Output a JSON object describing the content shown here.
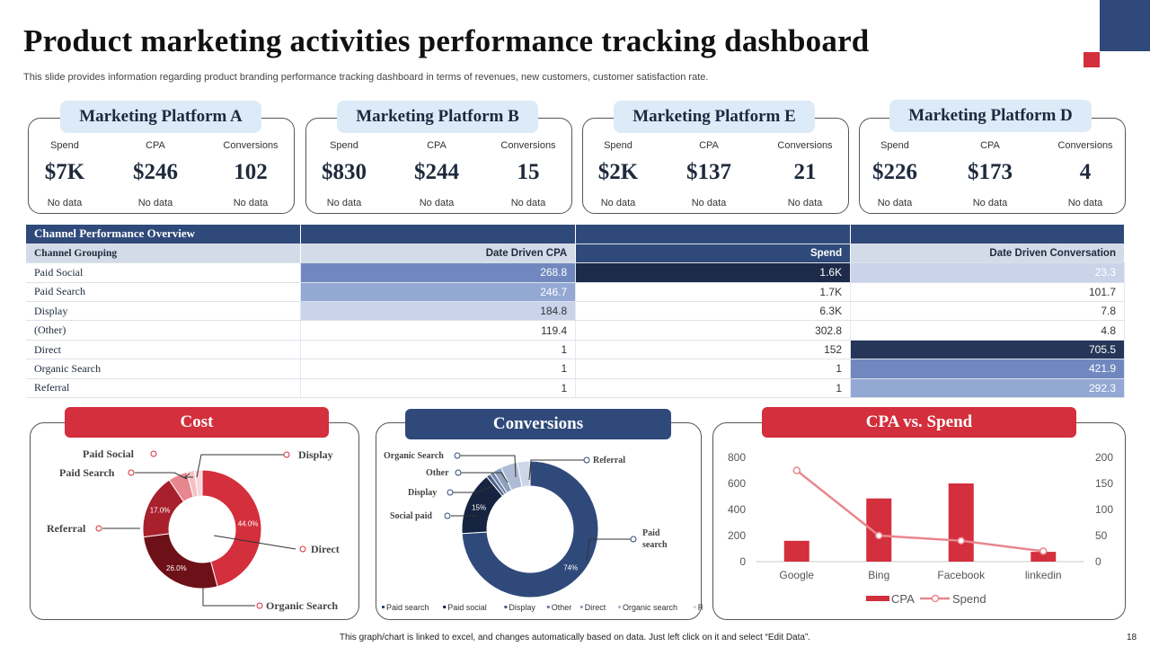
{
  "title": "Product marketing activities performance tracking dashboard",
  "subtitle": "This slide provides information regarding product branding performance tracking dashboard in terms of revenues, new customers, customer satisfaction rate.",
  "colors": {
    "navy": "#2f4a7a",
    "dark_navy": "#1e2a4a",
    "red": "#d32f3c",
    "light_blue": "#ddeaf7"
  },
  "platforms": [
    {
      "name": "Marketing Platform A",
      "spend_label": "Spend",
      "spend": "$7K",
      "cpa_label": "CPA",
      "cpa": "$246",
      "conv_label": "Conversions",
      "conversions": "102",
      "note": "No data"
    },
    {
      "name": "Marketing Platform B",
      "spend_label": "Spend",
      "spend": "$830",
      "cpa_label": "CPA",
      "cpa": "$244",
      "conv_label": "Conversions",
      "conversions": "15",
      "note": "No data"
    },
    {
      "name": "Marketing Platform E",
      "spend_label": "Spend",
      "spend": "$2K",
      "cpa_label": "CPA",
      "cpa": "$137",
      "conv_label": "Conversions",
      "conversions": "21",
      "note": "No data"
    },
    {
      "name": "Marketing Platform D",
      "spend_label": "Spend",
      "spend": "$226",
      "cpa_label": "CPA",
      "cpa": "$173",
      "conv_label": "Conversions",
      "conversions": "4",
      "note": "No data"
    }
  ],
  "table": {
    "title": "Channel Performance Overview",
    "columns": [
      "Channel Grouping",
      "Date Driven CPA",
      "Spend",
      "Date Driven Conversation"
    ],
    "rows": [
      {
        "channel": "Paid Social",
        "cpa": "268.8",
        "spend": "1.6K",
        "conversation": "23.3"
      },
      {
        "channel": "Paid Search",
        "cpa": "246.7",
        "spend": "1.7K",
        "conversation": "101.7"
      },
      {
        "channel": "Display",
        "cpa": "184.8",
        "spend": "6.3K",
        "conversation": "7.8"
      },
      {
        "channel": "(Other)",
        "cpa": "119.4",
        "spend": "302.8",
        "conversation": "4.8"
      },
      {
        "channel": "Direct",
        "cpa": "1",
        "spend": "152",
        "conversation": "705.5"
      },
      {
        "channel": "Organic Search",
        "cpa": "1",
        "spend": "1",
        "conversation": "421.9"
      },
      {
        "channel": "Referral",
        "cpa": "1",
        "spend": "1",
        "conversation": "292.3"
      }
    ]
  },
  "cost_panel": {
    "title": "Cost"
  },
  "conversions_panel": {
    "title": "Conversions"
  },
  "cpa_panel": {
    "title": "CPA vs. Spend"
  },
  "chart_data": [
    {
      "type": "pie",
      "title": "Cost",
      "categories": [
        "Paid Social",
        "Paid Search",
        "Display",
        "Referral",
        "Organic Search",
        "Direct"
      ],
      "values": [
        2,
        5,
        2,
        17,
        26,
        44
      ],
      "value_labels": [
        "",
        "",
        "",
        "17.0%",
        "26.0%",
        "44.0%"
      ],
      "colors": [
        "#f3c0c4",
        "#e8868e",
        "#f7d6d9",
        "#a8202c",
        "#6e1018",
        "#d32f3c"
      ],
      "legend_labels": {
        "paid_social": "Paid Social",
        "paid_search": "Paid Search",
        "display": "Display",
        "referral": "Referral",
        "organic_search": "Organic Search",
        "direct": "Direct"
      }
    },
    {
      "type": "pie",
      "title": "Conversions",
      "categories": [
        "Paid search",
        "Paid social",
        "Display",
        "Other",
        "Direct",
        "Organic search",
        "Referral"
      ],
      "values": [
        74,
        15,
        1,
        1,
        2,
        4,
        3
      ],
      "value_labels": [
        "74%",
        "15%",
        "",
        "",
        "",
        "",
        ""
      ],
      "colors": [
        "#2f4a7a",
        "#162441",
        "#4a5f86",
        "#6f82a8",
        "#8fa0c0",
        "#aebbd4",
        "#cdd6e6"
      ],
      "callouts": {
        "organic_search": "Organic Search",
        "other": "Other",
        "display": "Display",
        "social_paid": "Social paid",
        "referral": "Referral",
        "paid_search_1": "Paid",
        "paid_search_2": "search"
      },
      "legend": [
        "Paid search",
        "Paid social",
        "Display",
        "Other",
        "Direct",
        "Organic search",
        "Referral"
      ]
    },
    {
      "type": "bar",
      "title": "CPA vs. Spend",
      "categories": [
        "Google",
        "Bing",
        "Facebook",
        "linkedin"
      ],
      "series": [
        {
          "name": "CPA",
          "type": "bar",
          "axis": "left",
          "values": [
            160,
            485,
            600,
            75
          ],
          "color": "#d32f3c"
        },
        {
          "name": "Spend",
          "type": "line",
          "axis": "right",
          "values": [
            175,
            50,
            40,
            20
          ],
          "color": "#e8868e"
        }
      ],
      "ylim_left": [
        0,
        800
      ],
      "yticks_left": [
        "0",
        "200",
        "400",
        "600",
        "800"
      ],
      "ylim_right": [
        0,
        200
      ],
      "yticks_right": [
        "0",
        "50",
        "100",
        "150",
        "200"
      ],
      "legend_position": "bottom"
    }
  ],
  "footnote": "This graph/chart is linked to excel, and changes automatically based on data. Just left click on it and select “Edit Data”.",
  "page_number": "18"
}
